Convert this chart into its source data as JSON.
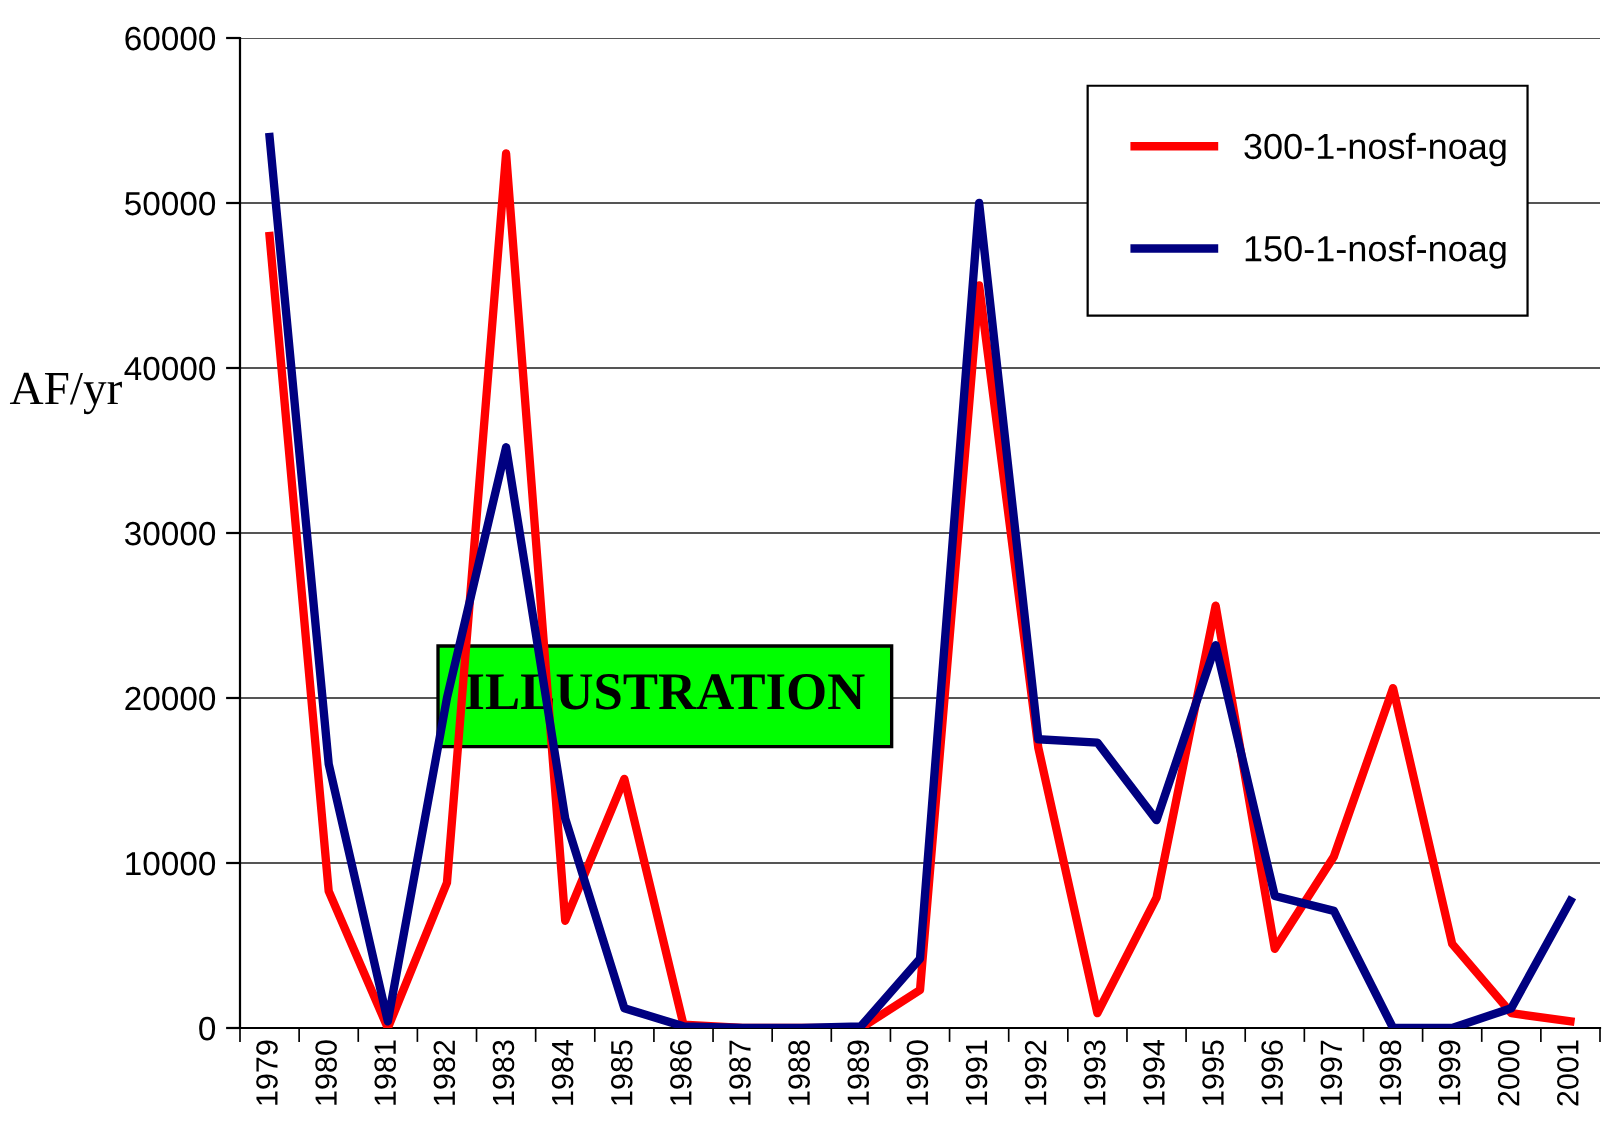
{
  "chart_data": {
    "type": "line",
    "ylabel": "AF/yr",
    "categories": [
      "1979",
      "1980",
      "1981",
      "1982",
      "1983",
      "1984",
      "1985",
      "1986",
      "1987",
      "1988",
      "1989",
      "1990",
      "1991",
      "1992",
      "1993",
      "1994",
      "1995",
      "1996",
      "1997",
      "1998",
      "1999",
      "2000",
      "2001"
    ],
    "series": [
      {
        "name": "300-1-nosf-noag",
        "color": "#ff0000",
        "values": [
          48000,
          8300,
          0,
          8800,
          53000,
          6500,
          15100,
          200,
          0,
          0,
          0,
          2300,
          45000,
          17000,
          900,
          7900,
          25600,
          4800,
          10400,
          20600,
          5100,
          900,
          400
        ]
      },
      {
        "name": "150-1-nosf-noag",
        "color": "#000080",
        "values": [
          54000,
          16000,
          400,
          20000,
          35200,
          12700,
          1200,
          100,
          0,
          0,
          100,
          4200,
          50000,
          17500,
          17300,
          12600,
          23200,
          8000,
          7100,
          0,
          0,
          1200,
          7700
        ]
      }
    ],
    "ylim": [
      0,
      60000
    ],
    "yticks": [
      0,
      10000,
      20000,
      30000,
      40000,
      50000,
      60000
    ],
    "grid": "y",
    "legend": "top right",
    "marker": "none",
    "line_style": "solid",
    "annotations": [
      "ILLUSTRATION"
    ]
  }
}
